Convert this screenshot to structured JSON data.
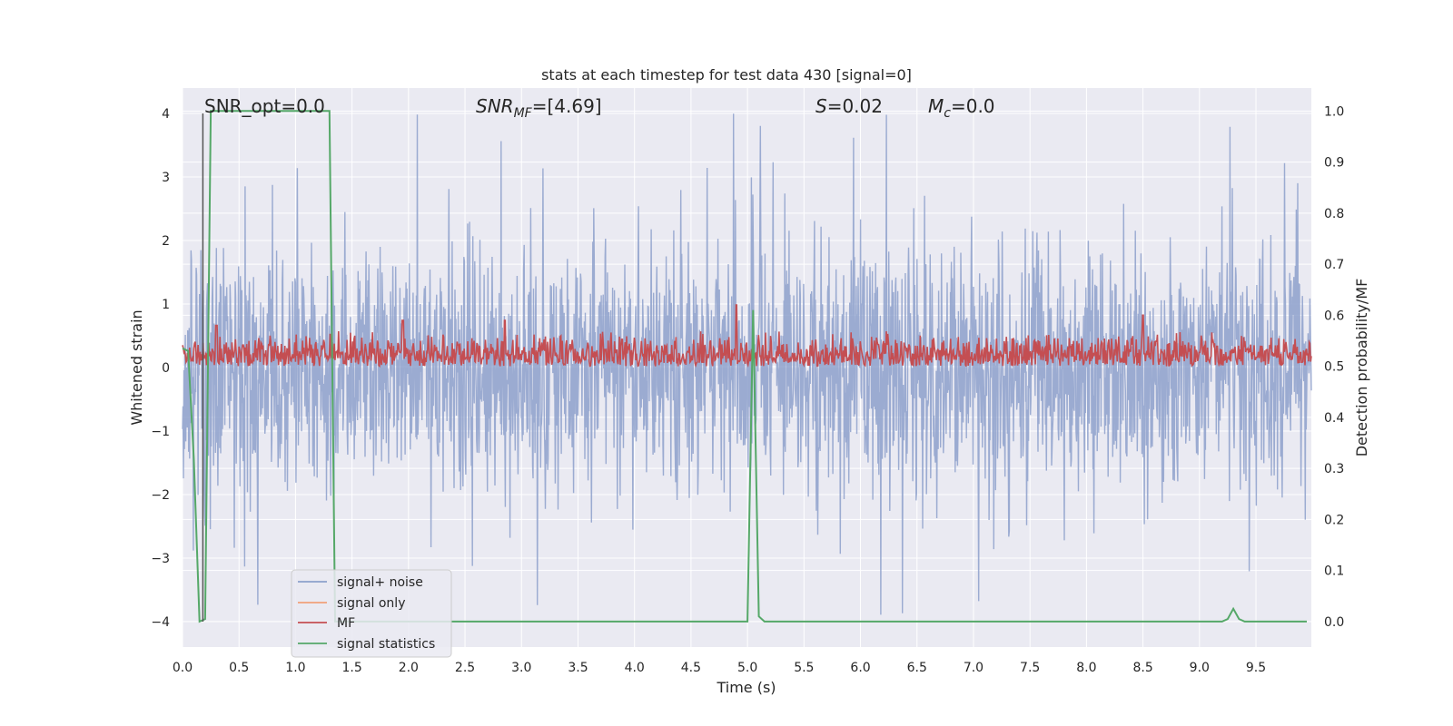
{
  "chart_data": {
    "type": "line",
    "title": "stats at each timestep for test data 430 [signal=0]",
    "xlabel": "Time (s)",
    "ylabel_left": "Whitened strain",
    "ylabel_right": "Detection probability/MF",
    "xlim": [
      0,
      9.99
    ],
    "ylim_left": [
      -4.4,
      4.4
    ],
    "ylim_right": [
      -0.05,
      1.045
    ],
    "x_ticks": [
      "0.0",
      "0.5",
      "1.0",
      "1.5",
      "2.0",
      "2.5",
      "3.0",
      "3.5",
      "4.0",
      "4.5",
      "5.0",
      "5.5",
      "6.0",
      "6.5",
      "7.0",
      "7.5",
      "8.0",
      "8.5",
      "9.0",
      "9.5"
    ],
    "y_ticks_left": [
      "4",
      "3",
      "2",
      "1",
      "0",
      "−1",
      "−2",
      "−3",
      "−4"
    ],
    "y_ticks_right": [
      "1.0",
      "0.9",
      "0.8",
      "0.7",
      "0.6",
      "0.5",
      "0.4",
      "0.3",
      "0.2",
      "0.1",
      "0.0"
    ],
    "grid": true,
    "legend_position": "lower-left",
    "annotations": {
      "snr_opt": "SNR_opt=0.0",
      "snr_mf_sym": "SNR",
      "snr_mf_sub": "MF",
      "snr_mf_val": "=[4.69]",
      "s_sym": "S",
      "s_val": "=0.02",
      "mc_sym": "M",
      "mc_sub": "c",
      "mc_val": "=0.0"
    },
    "marker_line": {
      "x": 0.18,
      "y_range": [
        -4.0,
        4.0
      ]
    },
    "series": [
      {
        "name": "signal+ noise",
        "axis": "left",
        "color": "#8da0cb",
        "description": "dense whitened strain noise, envelope approx -3 to +3, isolated spikes up to 4",
        "amplitude_typical": 1.4,
        "max_peak": 4.0,
        "min_peak": -4.0
      },
      {
        "name": "signal only",
        "axis": "left",
        "color": "#f0a07a",
        "values": []
      },
      {
        "name": "MF",
        "axis": "right",
        "color": "#c44e52",
        "description": "matched-filter output fluctuating between approx 0.5 and 0.6",
        "baseline": 0.5,
        "typical_max": 0.57,
        "peaks": [
          [
            0.3,
            0.58
          ],
          [
            1.95,
            0.59
          ],
          [
            2.85,
            0.59
          ],
          [
            4.9,
            0.62
          ],
          [
            8.5,
            0.6
          ]
        ]
      },
      {
        "name": "signal statistics",
        "axis": "right",
        "color": "#55a868",
        "x": [
          0.0,
          0.05,
          0.1,
          0.15,
          0.2,
          0.25,
          0.3,
          0.35,
          1.25,
          1.3,
          1.35,
          1.4,
          1.5,
          5.0,
          5.05,
          5.1,
          5.15,
          5.2,
          9.2,
          9.25,
          9.3,
          9.35,
          9.4,
          9.45,
          9.95
        ],
        "y": [
          0.535,
          0.53,
          0.32,
          0.0,
          0.005,
          1.0,
          1.0,
          1.0,
          1.0,
          1.0,
          0.0,
          0.0,
          0.0,
          0.0,
          0.61,
          0.01,
          0.0,
          0.0,
          0.0,
          0.005,
          0.025,
          0.005,
          0.0,
          0.0,
          0.0
        ]
      }
    ]
  }
}
